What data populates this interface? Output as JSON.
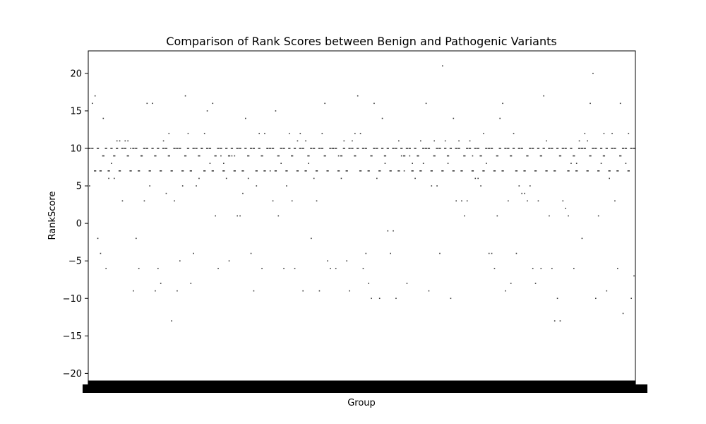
{
  "chart_data": {
    "type": "box",
    "title": "Comparison of Rank Scores between Benign and Pathogenic Variants",
    "xlabel": "Group",
    "ylabel": "RankScore",
    "ylim": [
      -21,
      23
    ],
    "yticks": [
      -20,
      -15,
      -10,
      -5,
      0,
      5,
      10,
      15,
      20
    ],
    "grid": false,
    "legend": "none",
    "category_count": 200,
    "category_labels_note": "x tick labels overlap into an unreadable solid band",
    "box_values": [
      10,
      10,
      7,
      10,
      7,
      9,
      10,
      7,
      10,
      9,
      10,
      7,
      10,
      10,
      9,
      7,
      10,
      10,
      7,
      9,
      10,
      10,
      7,
      10,
      9,
      10,
      7,
      10,
      10,
      9,
      7,
      10,
      10,
      10,
      7,
      9,
      10,
      7,
      10,
      10,
      9,
      10,
      7,
      10,
      10,
      7,
      9,
      10,
      10,
      7,
      10,
      9,
      10,
      7,
      10,
      10,
      7,
      10,
      9,
      10,
      10,
      7,
      10,
      9,
      7,
      10,
      10,
      10,
      7,
      9,
      10,
      10,
      7,
      10,
      9,
      10,
      7,
      10,
      10,
      7,
      9,
      10,
      10,
      7,
      10,
      10,
      9,
      7,
      10,
      10,
      10,
      7,
      9,
      10,
      7,
      10,
      10,
      9,
      10,
      7,
      10,
      10,
      7,
      9,
      10,
      10,
      7,
      10,
      9,
      10,
      7,
      10,
      10,
      7,
      10,
      9,
      10,
      10,
      7,
      10,
      9,
      7,
      10,
      10,
      10,
      7,
      9,
      10,
      10,
      7,
      10,
      9,
      10,
      7,
      10,
      10,
      7,
      9,
      10,
      10,
      7,
      10,
      10,
      9,
      7,
      10,
      10,
      10,
      7,
      9,
      10,
      7,
      10,
      10,
      9,
      10,
      7,
      10,
      10,
      7,
      9,
      10,
      10,
      7,
      10,
      9,
      10,
      7,
      10,
      10,
      7,
      10,
      9,
      10,
      10,
      7,
      10,
      9,
      7,
      10,
      10,
      10,
      7,
      9,
      10,
      10,
      7,
      10,
      9,
      10,
      7,
      10,
      10,
      7,
      9,
      10,
      10,
      7,
      10,
      10
    ],
    "outliers": [
      [
        1,
        5
      ],
      [
        2,
        16
      ],
      [
        3,
        17
      ],
      [
        4,
        -2
      ],
      [
        5,
        -4
      ],
      [
        6,
        14
      ],
      [
        7,
        -6
      ],
      [
        8,
        6
      ],
      [
        9,
        8
      ],
      [
        10,
        6
      ],
      [
        11,
        11
      ],
      [
        12,
        11
      ],
      [
        13,
        3
      ],
      [
        14,
        11
      ],
      [
        15,
        11
      ],
      [
        16,
        10
      ],
      [
        17,
        -9
      ],
      [
        18,
        -2
      ],
      [
        19,
        -6
      ],
      [
        20,
        9
      ],
      [
        21,
        3
      ],
      [
        22,
        16
      ],
      [
        23,
        5
      ],
      [
        24,
        16
      ],
      [
        25,
        -9
      ],
      [
        26,
        -6
      ],
      [
        27,
        -8
      ],
      [
        28,
        11
      ],
      [
        29,
        4
      ],
      [
        30,
        12
      ],
      [
        31,
        -13
      ],
      [
        32,
        3
      ],
      [
        33,
        -9
      ],
      [
        34,
        -5
      ],
      [
        35,
        5
      ],
      [
        36,
        17
      ],
      [
        37,
        12
      ],
      [
        38,
        -8
      ],
      [
        39,
        -4
      ],
      [
        40,
        5
      ],
      [
        41,
        6
      ],
      [
        42,
        10
      ],
      [
        43,
        12
      ],
      [
        44,
        15
      ],
      [
        45,
        8
      ],
      [
        46,
        16
      ],
      [
        47,
        1
      ],
      [
        48,
        -6
      ],
      [
        49,
        9
      ],
      [
        50,
        8
      ],
      [
        51,
        6
      ],
      [
        52,
        -5
      ],
      [
        53,
        9
      ],
      [
        54,
        9
      ],
      [
        55,
        1
      ],
      [
        56,
        1
      ],
      [
        57,
        4
      ],
      [
        58,
        14
      ],
      [
        59,
        6
      ],
      [
        60,
        -4
      ],
      [
        61,
        -9
      ],
      [
        62,
        5
      ],
      [
        63,
        12
      ],
      [
        64,
        -6
      ],
      [
        65,
        12
      ],
      [
        66,
        10
      ],
      [
        67,
        7
      ],
      [
        68,
        3
      ],
      [
        69,
        15
      ],
      [
        70,
        1
      ],
      [
        71,
        8
      ],
      [
        72,
        -6
      ],
      [
        73,
        5
      ],
      [
        74,
        12
      ],
      [
        75,
        3
      ],
      [
        76,
        -6
      ],
      [
        77,
        11
      ],
      [
        78,
        12
      ],
      [
        79,
        -9
      ],
      [
        80,
        11
      ],
      [
        81,
        8
      ],
      [
        82,
        -2
      ],
      [
        83,
        6
      ],
      [
        84,
        3
      ],
      [
        85,
        -9
      ],
      [
        86,
        12
      ],
      [
        87,
        16
      ],
      [
        88,
        -5
      ],
      [
        89,
        -6
      ],
      [
        90,
        10
      ],
      [
        91,
        -6
      ],
      [
        92,
        9
      ],
      [
        93,
        6
      ],
      [
        94,
        11
      ],
      [
        95,
        -5
      ],
      [
        96,
        -9
      ],
      [
        97,
        11
      ],
      [
        98,
        12
      ],
      [
        99,
        17
      ],
      [
        100,
        12
      ],
      [
        101,
        -6
      ],
      [
        102,
        -4
      ],
      [
        103,
        -8
      ],
      [
        104,
        -10
      ],
      [
        105,
        16
      ],
      [
        106,
        6
      ],
      [
        107,
        -10
      ],
      [
        108,
        14
      ],
      [
        109,
        8
      ],
      [
        110,
        -1
      ],
      [
        111,
        -4
      ],
      [
        112,
        -1
      ],
      [
        113,
        -10
      ],
      [
        114,
        11
      ],
      [
        115,
        9
      ],
      [
        116,
        7
      ],
      [
        117,
        -8
      ],
      [
        118,
        9
      ],
      [
        119,
        8
      ],
      [
        120,
        6
      ],
      [
        121,
        9
      ],
      [
        122,
        11
      ],
      [
        123,
        8
      ],
      [
        124,
        16
      ],
      [
        125,
        -9
      ],
      [
        126,
        5
      ],
      [
        127,
        11
      ],
      [
        128,
        5
      ],
      [
        129,
        -4
      ],
      [
        130,
        21
      ],
      [
        131,
        11
      ],
      [
        132,
        8
      ],
      [
        133,
        -10
      ],
      [
        134,
        14
      ],
      [
        135,
        3
      ],
      [
        136,
        11
      ],
      [
        137,
        3
      ],
      [
        138,
        1
      ],
      [
        139,
        3
      ],
      [
        140,
        11
      ],
      [
        141,
        9
      ],
      [
        142,
        6
      ],
      [
        143,
        6
      ],
      [
        144,
        5
      ],
      [
        145,
        12
      ],
      [
        146,
        8
      ],
      [
        147,
        -4
      ],
      [
        148,
        -4
      ],
      [
        149,
        -6
      ],
      [
        150,
        1
      ],
      [
        151,
        14
      ],
      [
        152,
        16
      ],
      [
        153,
        -9
      ],
      [
        154,
        3
      ],
      [
        155,
        -8
      ],
      [
        156,
        12
      ],
      [
        157,
        -4
      ],
      [
        158,
        5
      ],
      [
        159,
        4
      ],
      [
        160,
        4
      ],
      [
        161,
        3
      ],
      [
        162,
        5
      ],
      [
        163,
        -6
      ],
      [
        164,
        -8
      ],
      [
        165,
        3
      ],
      [
        166,
        -6
      ],
      [
        167,
        17
      ],
      [
        168,
        11
      ],
      [
        169,
        1
      ],
      [
        170,
        -6
      ],
      [
        171,
        -13
      ],
      [
        172,
        -10
      ],
      [
        173,
        -13
      ],
      [
        174,
        3
      ],
      [
        175,
        2
      ],
      [
        176,
        1
      ],
      [
        177,
        8
      ],
      [
        178,
        -6
      ],
      [
        179,
        8
      ],
      [
        180,
        11
      ],
      [
        181,
        -2
      ],
      [
        182,
        12
      ],
      [
        183,
        11
      ],
      [
        184,
        16
      ],
      [
        185,
        20
      ],
      [
        186,
        -10
      ],
      [
        187,
        1
      ],
      [
        188,
        8
      ],
      [
        189,
        12
      ],
      [
        190,
        -9
      ],
      [
        191,
        6
      ],
      [
        192,
        12
      ],
      [
        193,
        3
      ],
      [
        194,
        -6
      ],
      [
        195,
        16
      ],
      [
        196,
        -12
      ],
      [
        197,
        8
      ],
      [
        198,
        12
      ],
      [
        199,
        -10
      ],
      [
        200,
        -7
      ]
    ]
  }
}
